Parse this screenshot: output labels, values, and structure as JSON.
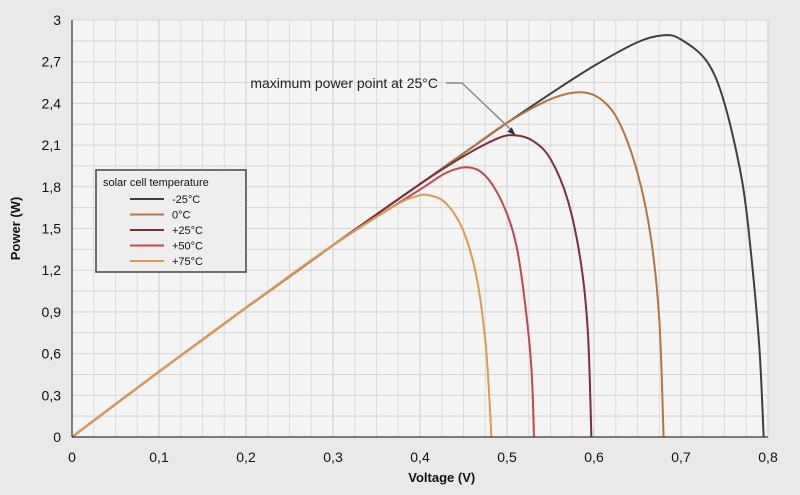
{
  "chart_data": {
    "type": "line",
    "title": "",
    "xlabel": "Voltage (V)",
    "ylabel": "Power (W)",
    "xlim": [
      0,
      0.8
    ],
    "ylim": [
      0,
      3
    ],
    "x_ticks": [
      0,
      0.1,
      0.2,
      0.3,
      0.4,
      0.5,
      0.6,
      0.7,
      0.8
    ],
    "x_tick_labels": [
      "0",
      "0,1",
      "0,2",
      "0,3",
      "0,4",
      "0,5",
      "0,6",
      "0,7",
      "0,8"
    ],
    "y_ticks": [
      0,
      0.3,
      0.6,
      0.9,
      1.2,
      1.5,
      1.8,
      2.1,
      2.4,
      2.7,
      3.0
    ],
    "y_tick_labels": [
      "0",
      "0,3",
      "0,6",
      "0,9",
      "1,2",
      "1,5",
      "1,8",
      "2,1",
      "2,4",
      "2,7",
      "3"
    ],
    "grid": true,
    "legend": {
      "title": "solar cell temperature",
      "placement": "left-middle"
    },
    "annotation": {
      "text": "maximum power point at 25°C",
      "target": [
        0.51,
        2.17
      ]
    },
    "series": [
      {
        "name": "-25°C",
        "color": "#3f3f3f",
        "points": [
          [
            0,
            0
          ],
          [
            0.1,
            0.47
          ],
          [
            0.2,
            0.93
          ],
          [
            0.3,
            1.38
          ],
          [
            0.4,
            1.82
          ],
          [
            0.45,
            2.04
          ],
          [
            0.5,
            2.26
          ],
          [
            0.55,
            2.47
          ],
          [
            0.6,
            2.67
          ],
          [
            0.65,
            2.84
          ],
          [
            0.68,
            2.89
          ],
          [
            0.7,
            2.86
          ],
          [
            0.73,
            2.7
          ],
          [
            0.75,
            2.4
          ],
          [
            0.77,
            1.85
          ],
          [
            0.78,
            1.35
          ],
          [
            0.79,
            0.65
          ],
          [
            0.795,
            0
          ]
        ]
      },
      {
        "name": "0°C",
        "color": "#b5743f",
        "points": [
          [
            0,
            0
          ],
          [
            0.1,
            0.47
          ],
          [
            0.2,
            0.93
          ],
          [
            0.3,
            1.38
          ],
          [
            0.4,
            1.82
          ],
          [
            0.45,
            2.04
          ],
          [
            0.5,
            2.26
          ],
          [
            0.55,
            2.43
          ],
          [
            0.585,
            2.48
          ],
          [
            0.61,
            2.42
          ],
          [
            0.63,
            2.25
          ],
          [
            0.65,
            1.9
          ],
          [
            0.665,
            1.45
          ],
          [
            0.675,
            0.85
          ],
          [
            0.68,
            0
          ]
        ]
      },
      {
        "name": "+25°C",
        "color": "#7d2f3c",
        "points": [
          [
            0,
            0
          ],
          [
            0.1,
            0.47
          ],
          [
            0.2,
            0.93
          ],
          [
            0.3,
            1.38
          ],
          [
            0.4,
            1.82
          ],
          [
            0.45,
            2.02
          ],
          [
            0.49,
            2.15
          ],
          [
            0.51,
            2.17
          ],
          [
            0.53,
            2.13
          ],
          [
            0.55,
            2.0
          ],
          [
            0.57,
            1.7
          ],
          [
            0.585,
            1.25
          ],
          [
            0.593,
            0.75
          ],
          [
            0.597,
            0
          ]
        ]
      },
      {
        "name": "+50°C",
        "color": "#c3474f",
        "points": [
          [
            0,
            0
          ],
          [
            0.1,
            0.47
          ],
          [
            0.2,
            0.93
          ],
          [
            0.3,
            1.38
          ],
          [
            0.4,
            1.78
          ],
          [
            0.43,
            1.9
          ],
          [
            0.455,
            1.94
          ],
          [
            0.475,
            1.88
          ],
          [
            0.495,
            1.68
          ],
          [
            0.51,
            1.4
          ],
          [
            0.52,
            1.0
          ],
          [
            0.528,
            0.5
          ],
          [
            0.531,
            0
          ]
        ]
      },
      {
        "name": "+75°C",
        "color": "#e09a4c",
        "points": [
          [
            0,
            0
          ],
          [
            0.1,
            0.47
          ],
          [
            0.2,
            0.93
          ],
          [
            0.3,
            1.38
          ],
          [
            0.37,
            1.66
          ],
          [
            0.395,
            1.73
          ],
          [
            0.41,
            1.74
          ],
          [
            0.43,
            1.68
          ],
          [
            0.45,
            1.48
          ],
          [
            0.465,
            1.15
          ],
          [
            0.475,
            0.7
          ],
          [
            0.48,
            0.25
          ],
          [
            0.482,
            0
          ]
        ]
      }
    ]
  }
}
